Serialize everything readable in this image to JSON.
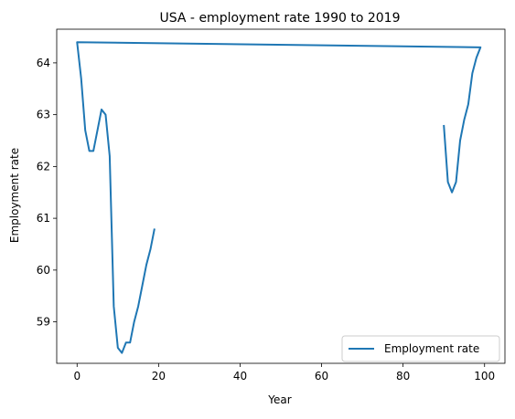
{
  "chart_data": {
    "type": "line",
    "title": "USA - employment rate 1990 to 2019",
    "xlabel": "Year",
    "ylabel": "Employment rate",
    "xlim": [
      -5,
      105
    ],
    "ylim": [
      58.2,
      64.65
    ],
    "grid": false,
    "legend_position": "lower-right",
    "xticks": [
      0,
      20,
      40,
      60,
      80,
      100
    ],
    "yticks": [
      59,
      60,
      61,
      62,
      63,
      64
    ],
    "series": [
      {
        "name": "Employment rate",
        "color": "#1f77b4",
        "points": [
          [
            90,
            62.8
          ],
          [
            91,
            61.7
          ],
          [
            92,
            61.5
          ],
          [
            93,
            61.7
          ],
          [
            94,
            62.5
          ],
          [
            95,
            62.9
          ],
          [
            96,
            63.2
          ],
          [
            97,
            63.8
          ],
          [
            98,
            64.1
          ],
          [
            99,
            64.3
          ],
          [
            0,
            64.4
          ],
          [
            1,
            63.7
          ],
          [
            2,
            62.7
          ],
          [
            3,
            62.3
          ],
          [
            4,
            62.3
          ],
          [
            5,
            62.7
          ],
          [
            6,
            63.1
          ],
          [
            7,
            63.0
          ],
          [
            8,
            62.2
          ],
          [
            9,
            59.3
          ],
          [
            10,
            58.5
          ],
          [
            11,
            58.4
          ],
          [
            12,
            58.6
          ],
          [
            13,
            58.6
          ],
          [
            14,
            59.0
          ],
          [
            15,
            59.3
          ],
          [
            16,
            59.7
          ],
          [
            17,
            60.1
          ],
          [
            18,
            60.4
          ],
          [
            19,
            60.8
          ]
        ]
      }
    ]
  }
}
